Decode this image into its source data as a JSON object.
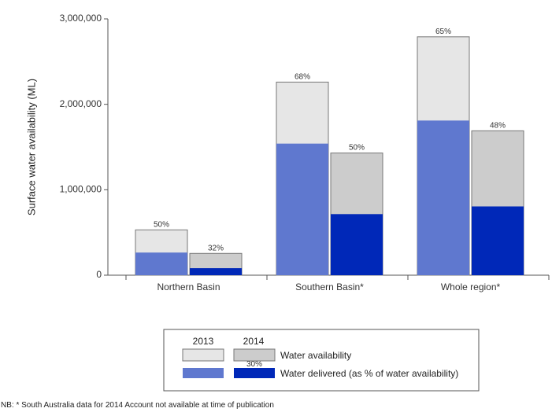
{
  "chart_data": {
    "type": "bar",
    "ylabel": "Surface water availability (ML)",
    "ylim": [
      0,
      3000000
    ],
    "yticks": [
      0,
      1000000,
      2000000,
      3000000
    ],
    "ytick_labels": [
      "0",
      "1,000,000",
      "2,000,000",
      "3,000,000"
    ],
    "categories": [
      "Northern Basin",
      "Southern Basin*",
      "Whole region*"
    ],
    "series": [
      {
        "year": "2013",
        "availability": [
          530000,
          2260000,
          2790000
        ],
        "delivered": [
          265000,
          1540000,
          1810000
        ],
        "delivered_pct_labels": [
          "50%",
          "68%",
          "65%"
        ]
      },
      {
        "year": "2014",
        "availability": [
          255000,
          1430000,
          1690000
        ],
        "delivered": [
          82000,
          715000,
          805000
        ],
        "delivered_pct_labels": [
          "32%",
          "50%",
          "48%"
        ]
      }
    ],
    "colors": {
      "availability_2013": "#e6e6e6",
      "availability_2014": "#cccccc",
      "delivered_2013": "#5f78cf",
      "delivered_2014": "#0028b8"
    },
    "legend": {
      "placement": "bottom",
      "years": [
        "2013",
        "2014"
      ],
      "availability_label": "Water availability",
      "delivered_label": "Water delivered (as % of water availability)",
      "example_pct": "30%"
    }
  },
  "footnote": "NB: * South Australia data for 2014 Account not available at time of publication"
}
